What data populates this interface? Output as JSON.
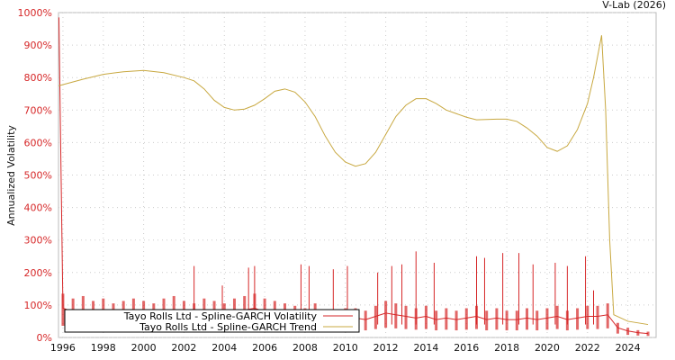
{
  "chart_data": {
    "type": "line",
    "title": "V-Lab (2026)",
    "xlabel": "",
    "ylabel": "Annualized Volatility",
    "xlim": [
      1995.78,
      2025.4
    ],
    "ylim": [
      0,
      1000
    ],
    "grid": true,
    "legend_placement": "bottom-left",
    "x_ticks": [
      "1996",
      "1998",
      "2000",
      "2002",
      "2004",
      "2006",
      "2008",
      "2010",
      "2012",
      "2014",
      "2016",
      "2018",
      "2020",
      "2022",
      "2024"
    ],
    "y_ticks": [
      "0%",
      "100%",
      "200%",
      "300%",
      "400%",
      "500%",
      "600%",
      "700%",
      "800%",
      "900%",
      "1000%"
    ],
    "series": [
      {
        "name": "Tayo Rolls Ltd - Spline-GARCH Volatility",
        "color": "#d62728",
        "x_start": 1996.0,
        "x_step": 0.5,
        "values": [
          90,
          80,
          85,
          75,
          80,
          70,
          75,
          80,
          75,
          70,
          80,
          85,
          75,
          70,
          80,
          75,
          70,
          80,
          85,
          90,
          80,
          75,
          70,
          65,
          60,
          70,
          55,
          50,
          60,
          60,
          55,
          65,
          75,
          70,
          65,
          60,
          65,
          55,
          60,
          55,
          60,
          65,
          55,
          60,
          55,
          55,
          60,
          55,
          60,
          65,
          55,
          60,
          65,
          65,
          70,
          30,
          20,
          15,
          12
        ],
        "initial_spike": [
          1995.8,
          985
        ],
        "spikes": [
          [
            2002.5,
            220
          ],
          [
            2003.9,
            160
          ],
          [
            2005.2,
            215
          ],
          [
            2005.5,
            220
          ],
          [
            2007.8,
            225
          ],
          [
            2008.2,
            220
          ],
          [
            2009.4,
            210
          ],
          [
            2010.1,
            220
          ],
          [
            2011.6,
            200
          ],
          [
            2012.3,
            220
          ],
          [
            2012.8,
            225
          ],
          [
            2013.5,
            265
          ],
          [
            2014.4,
            230
          ],
          [
            2016.5,
            250
          ],
          [
            2016.9,
            245
          ],
          [
            2017.8,
            260
          ],
          [
            2018.6,
            260
          ],
          [
            2019.3,
            225
          ],
          [
            2020.4,
            230
          ],
          [
            2021.0,
            220
          ],
          [
            2021.9,
            250
          ],
          [
            2022.3,
            145
          ]
        ]
      },
      {
        "name": "Tayo Rolls Ltd - Spline-GARCH Trend",
        "color": "#c8a840",
        "points": [
          [
            1995.8,
            775
          ],
          [
            1997,
            795
          ],
          [
            1998,
            810
          ],
          [
            1999,
            818
          ],
          [
            2000,
            822
          ],
          [
            2001,
            815
          ],
          [
            2002,
            800
          ],
          [
            2002.5,
            790
          ],
          [
            2003,
            765
          ],
          [
            2003.5,
            730
          ],
          [
            2004,
            708
          ],
          [
            2004.5,
            700
          ],
          [
            2005,
            703
          ],
          [
            2005.5,
            715
          ],
          [
            2006,
            735
          ],
          [
            2006.5,
            758
          ],
          [
            2007,
            765
          ],
          [
            2007.5,
            755
          ],
          [
            2008,
            725
          ],
          [
            2008.5,
            680
          ],
          [
            2009,
            620
          ],
          [
            2009.5,
            570
          ],
          [
            2010,
            540
          ],
          [
            2010.5,
            527
          ],
          [
            2011,
            535
          ],
          [
            2011.5,
            570
          ],
          [
            2012,
            625
          ],
          [
            2012.5,
            680
          ],
          [
            2013,
            715
          ],
          [
            2013.5,
            735
          ],
          [
            2014,
            735
          ],
          [
            2014.5,
            720
          ],
          [
            2015,
            700
          ],
          [
            2016,
            678
          ],
          [
            2016.5,
            670
          ],
          [
            2017.5,
            672
          ],
          [
            2018,
            672
          ],
          [
            2018.5,
            665
          ],
          [
            2019,
            645
          ],
          [
            2019.5,
            620
          ],
          [
            2020,
            585
          ],
          [
            2020.5,
            573
          ],
          [
            2021,
            590
          ],
          [
            2021.5,
            640
          ],
          [
            2022,
            720
          ],
          [
            2022.3,
            800
          ],
          [
            2022.7,
            930
          ],
          [
            2022.9,
            700
          ],
          [
            2023.1,
            300
          ],
          [
            2023.3,
            70
          ],
          [
            2024,
            50
          ],
          [
            2025,
            40
          ]
        ]
      }
    ]
  }
}
